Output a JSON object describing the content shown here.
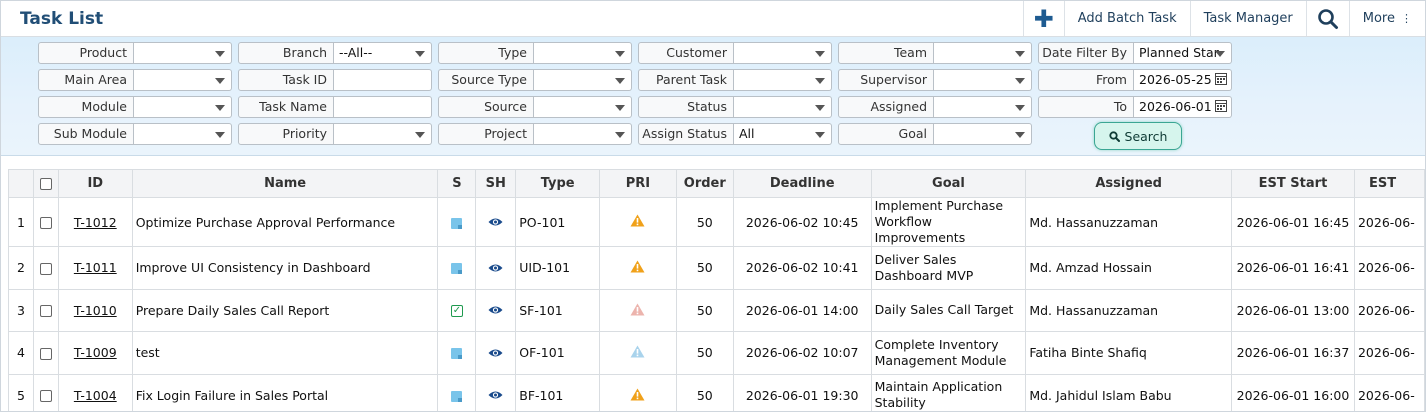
{
  "header": {
    "title": "Task List",
    "add_batch_label": "Add Batch Task",
    "task_manager_label": "Task Manager",
    "more_label": "More",
    "more_dots": "⋮"
  },
  "filters": {
    "product": {
      "label": "Product",
      "value": ""
    },
    "branch": {
      "label": "Branch",
      "value": "--All--"
    },
    "type": {
      "label": "Type",
      "value": ""
    },
    "customer": {
      "label": "Customer",
      "value": ""
    },
    "team": {
      "label": "Team",
      "value": ""
    },
    "date_filter_by": {
      "label": "Date Filter By",
      "value": "Planned Star"
    },
    "main_area": {
      "label": "Main Area",
      "value": ""
    },
    "task_id": {
      "label": "Task ID",
      "value": ""
    },
    "source_type": {
      "label": "Source Type",
      "value": ""
    },
    "parent_task": {
      "label": "Parent Task",
      "value": ""
    },
    "supervisor": {
      "label": "Supervisor",
      "value": ""
    },
    "from": {
      "label": "From",
      "value": "2026-05-25"
    },
    "module": {
      "label": "Module",
      "value": ""
    },
    "task_name": {
      "label": "Task Name",
      "value": ""
    },
    "source": {
      "label": "Source",
      "value": ""
    },
    "status": {
      "label": "Status",
      "value": ""
    },
    "assigned": {
      "label": "Assigned",
      "value": ""
    },
    "to": {
      "label": "To",
      "value": "2026-06-01"
    },
    "sub_module": {
      "label": "Sub Module",
      "value": ""
    },
    "priority": {
      "label": "Priority",
      "value": ""
    },
    "project": {
      "label": "Project",
      "value": ""
    },
    "assign_status": {
      "label": "Assign Status",
      "value": "All"
    },
    "goal": {
      "label": "Goal",
      "value": ""
    },
    "search_label": "Search"
  },
  "table": {
    "columns": [
      "",
      "",
      "ID",
      "Name",
      "S",
      "SH",
      "Type",
      "PRI",
      "Order",
      "Deadline",
      "Goal",
      "Assigned",
      "EST Start",
      "EST"
    ],
    "rows": [
      {
        "n": "1",
        "id": "T-1012",
        "name": "Optimize Purchase Approval Performance",
        "status": "open",
        "type": "PO-101",
        "pri": "high",
        "order": "50",
        "deadline": "2026-06-02 10:45",
        "goal": "Implement Purchase Workflow Improvements",
        "assigned": "Md. Hassanuzzaman",
        "est_start": "2026-06-01 16:45",
        "est": "2026-06-"
      },
      {
        "n": "2",
        "id": "T-1011",
        "name": "Improve UI Consistency in Dashboard",
        "status": "open",
        "type": "UID-101",
        "pri": "high",
        "order": "50",
        "deadline": "2026-06-02 10:41",
        "goal": "Deliver Sales Dashboard MVP",
        "assigned": "Md. Amzad Hossain",
        "est_start": "2026-06-01 16:41",
        "est": "2026-06-"
      },
      {
        "n": "3",
        "id": "T-1010",
        "name": "Prepare Daily Sales Call Report",
        "status": "done",
        "type": "SF-101",
        "pri": "low-red",
        "order": "50",
        "deadline": "2026-06-01 14:00",
        "goal": "Daily Sales Call Target",
        "assigned": "Md. Hassanuzzaman",
        "est_start": "2026-06-01 13:00",
        "est": "2026-06-"
      },
      {
        "n": "4",
        "id": "T-1009",
        "name": "test",
        "status": "open",
        "type": "OF-101",
        "pri": "low-blue",
        "order": "50",
        "deadline": "2026-06-02 10:07",
        "goal": "Complete Inventory Management Module",
        "assigned": "Fatiha Binte Shafiq",
        "est_start": "2026-06-01 16:37",
        "est": "2026-06-"
      },
      {
        "n": "5",
        "id": "T-1004",
        "name": "Fix Login Failure in Sales Portal",
        "status": "open",
        "type": "BF-101",
        "pri": "high",
        "order": "50",
        "deadline": "2026-06-01 19:30",
        "goal": "Maintain Application Stability",
        "assigned": "Md. Jahidul Islam Babu",
        "est_start": "2026-06-01 16:00",
        "est": "2026-06-"
      }
    ]
  },
  "colors": {
    "pri_high": "#f0a11a",
    "pri_low_red": "#ecb4ad",
    "pri_low_blue": "#a9d3ec",
    "eye": "#1a4b8c",
    "title": "#214e76"
  }
}
